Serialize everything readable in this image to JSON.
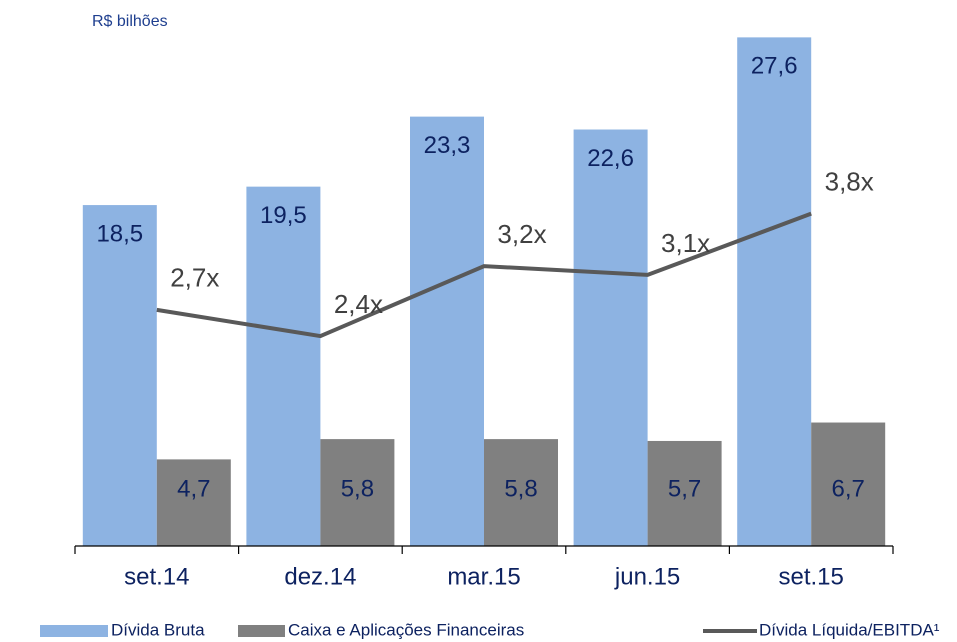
{
  "chart_data": {
    "type": "bar",
    "unit_label": "R$ bilhões",
    "categories": [
      "set.14",
      "dez.14",
      "mar.15",
      "jun.15",
      "set.15"
    ],
    "series": [
      {
        "name": "Dívida Bruta",
        "type": "bar",
        "color": "#8db3e2",
        "values": [
          18.5,
          19.5,
          23.3,
          22.6,
          27.6
        ],
        "value_labels": [
          "18,5",
          "19,5",
          "23,3",
          "22,6",
          "27,6"
        ]
      },
      {
        "name": "Caixa e Aplicações Financeiras",
        "type": "bar",
        "color": "#808080",
        "values": [
          4.7,
          5.8,
          5.8,
          5.7,
          6.7
        ],
        "value_labels": [
          "4,7",
          "5,8",
          "5,8",
          "5,7",
          "6,7"
        ]
      },
      {
        "name": "Dívida Líquida/EBITDA¹",
        "type": "line",
        "axis": "y2",
        "color": "#595959",
        "values": [
          2.7,
          2.4,
          3.2,
          3.1,
          3.8
        ],
        "value_labels": [
          "2,7x",
          "2,4x",
          "3,2x",
          "3,1x",
          "3,8x"
        ]
      }
    ],
    "ylim": [
      0,
      28
    ],
    "y2lim": [
      0,
      5.9
    ],
    "legend": "bottom"
  }
}
